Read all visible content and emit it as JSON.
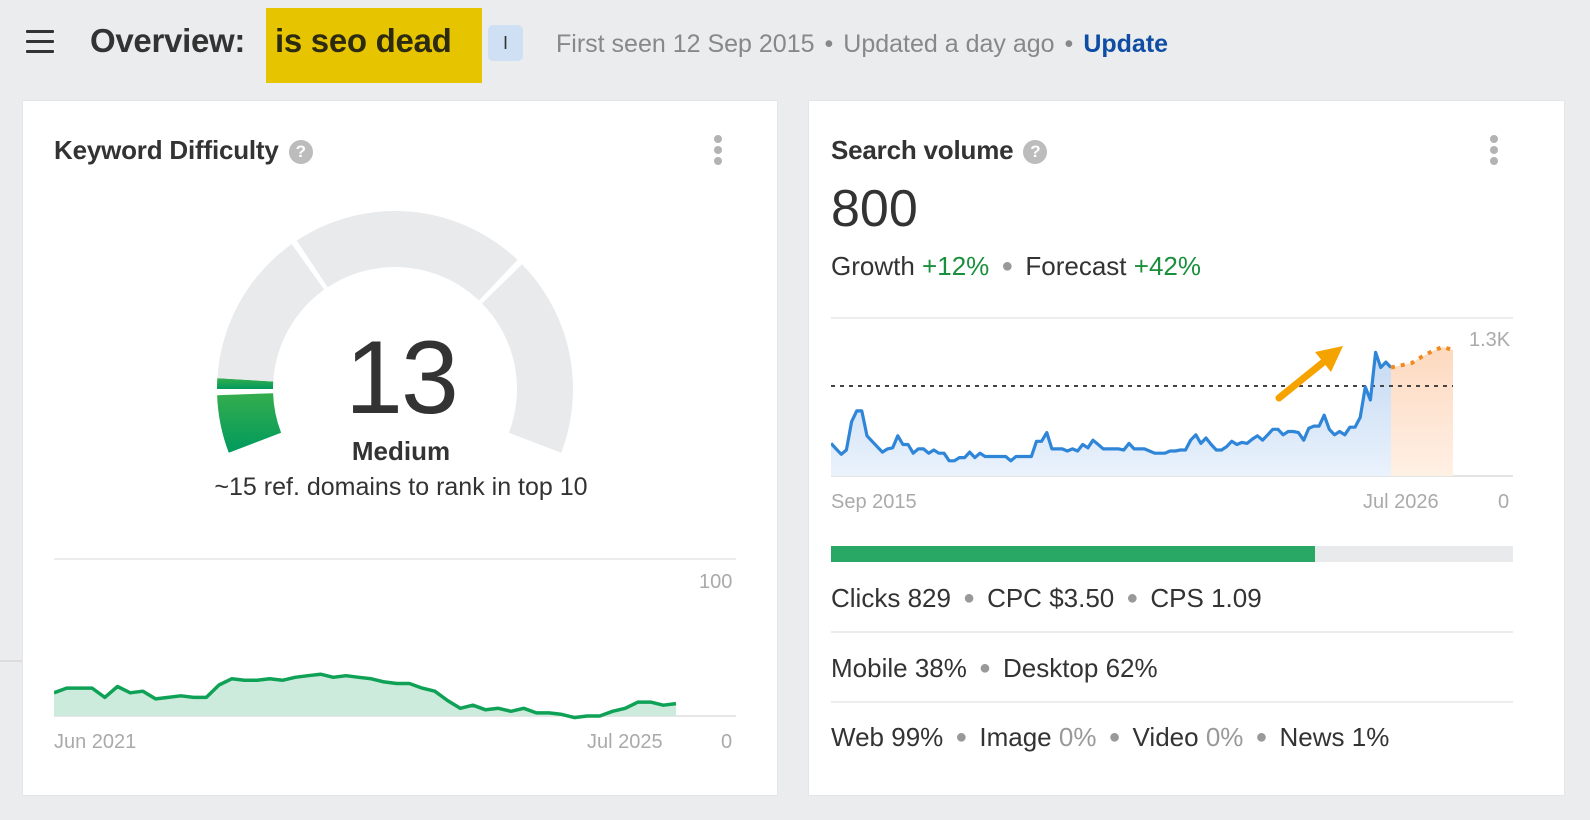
{
  "header": {
    "title_prefix": "Overview:",
    "keyword": "is seo dead",
    "intent_badge": "I",
    "first_seen": "First seen 12 Sep 2015",
    "updated": "Updated a day ago",
    "update_link": "Update",
    "separator": "•"
  },
  "keyword_difficulty": {
    "title": "Keyword Difficulty",
    "help": "?",
    "value": "13",
    "label": "Medium",
    "subtitle": "~15 ref. domains to rank in top 10",
    "chart": {
      "y_max_label": "100",
      "y_min_label": "0",
      "x_start": "Jun 2021",
      "x_end": "Jul 2025"
    }
  },
  "search_volume": {
    "title": "Search volume",
    "help": "?",
    "value": "800",
    "growth_label": "Growth",
    "growth_value": "+12%",
    "forecast_label": "Forecast",
    "forecast_value": "+42%",
    "chart": {
      "y_max_label": "1.3K",
      "y_min_label": "0",
      "x_start": "Sep 2015",
      "x_end": "Jul 2026"
    },
    "clicks_bar_percent": 71,
    "stats": {
      "clicks_label": "Clicks",
      "clicks_value": "829",
      "cpc_label": "CPC",
      "cpc_value": "$3.50",
      "cps_label": "CPS",
      "cps_value": "1.09"
    },
    "devices": {
      "mobile_label": "Mobile",
      "mobile_value": "38%",
      "desktop_label": "Desktop",
      "desktop_value": "62%"
    },
    "serp_types": {
      "web_label": "Web",
      "web_value": "99%",
      "image_label": "Image",
      "image_value": "0%",
      "video_label": "Video",
      "video_value": "0%",
      "news_label": "News",
      "news_value": "1%"
    }
  },
  "colors": {
    "keyword_highlight": "#e6c400",
    "update_link": "#0f4ca3",
    "kd_green": "#0a9e5c",
    "sv_line": "#3385d6",
    "forecast": "#f28a1e",
    "arrow": "#f5a300",
    "positive": "#1a8f3c",
    "clicks_bar": "#28a864"
  },
  "chart_data": [
    {
      "type": "area",
      "title": "Keyword Difficulty history",
      "x_start": "Jun 2021",
      "x_end": "Jul 2025",
      "ylim": [
        0,
        100
      ],
      "values": [
        15,
        18,
        18,
        18,
        12,
        19,
        15,
        16,
        11,
        12,
        13,
        12,
        12,
        20,
        24,
        23,
        23,
        24,
        23,
        25,
        26,
        27,
        25,
        26,
        25,
        24,
        22,
        21,
        21,
        18,
        16,
        10,
        5,
        7,
        4,
        5,
        3,
        5,
        2,
        2,
        1,
        -1,
        0,
        0,
        3,
        5,
        9,
        9,
        7,
        8
      ]
    },
    {
      "type": "line",
      "title": "Search volume history + forecast",
      "x_start": "Sep 2015",
      "x_end": "Jul 2026",
      "ylim": [
        0,
        1300
      ],
      "reference_line": 800,
      "series": [
        {
          "name": "Search volume",
          "values": [
            300,
            250,
            200,
            240,
            500,
            600,
            600,
            370,
            320,
            270,
            220,
            250,
            260,
            370,
            290,
            290,
            210,
            250,
            250,
            210,
            240,
            210,
            210,
            140,
            140,
            170,
            170,
            220,
            170,
            210,
            180,
            180,
            180,
            180,
            180,
            140,
            180,
            180,
            180,
            180,
            320,
            320,
            400,
            250,
            250,
            250,
            230,
            250,
            230,
            290,
            260,
            330,
            290,
            250,
            250,
            250,
            250,
            240,
            300,
            250,
            250,
            250,
            230,
            210,
            210,
            210,
            230,
            230,
            240,
            240,
            330,
            380,
            300,
            350,
            290,
            240,
            240,
            270,
            320,
            290,
            310,
            300,
            340,
            370,
            330,
            380,
            430,
            430,
            380,
            410,
            410,
            400,
            330,
            440,
            460,
            460,
            560,
            430,
            380,
            410,
            380,
            450,
            450,
            540,
            820,
            700,
            1140,
            1000,
            1050,
            1000
          ]
        },
        {
          "name": "Forecast",
          "values": [
            1000,
            1020,
            1040,
            1100,
            1150,
            1190,
            1160
          ]
        }
      ],
      "annotation": "orange upward arrow"
    }
  ]
}
